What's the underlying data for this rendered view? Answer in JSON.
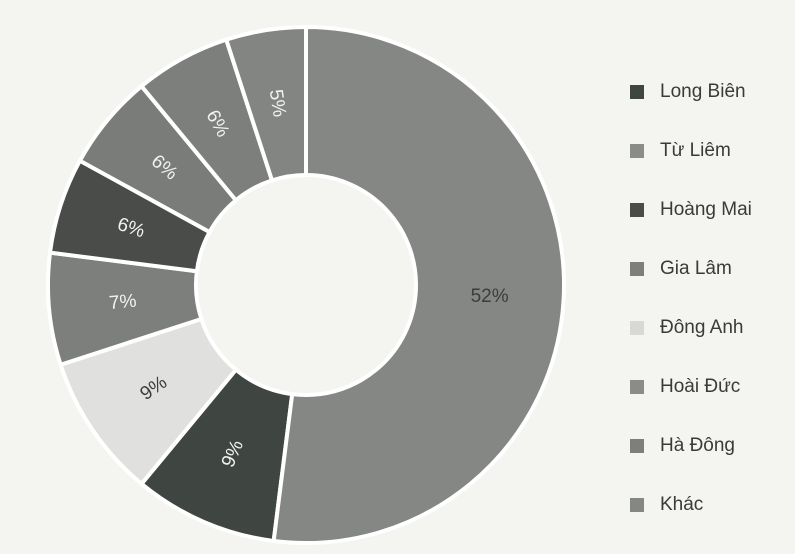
{
  "chart_data": {
    "type": "pie",
    "donut": true,
    "categories": [
      "Long Biên",
      "Từ Liêm",
      "Hoàng Mai",
      "Gia Lâm",
      "Đông Anh",
      "Hoài Đức",
      "Hà Đông",
      "Khác"
    ],
    "values": [
      9,
      9,
      7,
      6,
      6,
      6,
      5,
      52
    ],
    "value_labels": [
      "9%",
      "9%",
      "7%",
      "6%",
      "6%",
      "6%",
      "5%",
      "52%"
    ],
    "colors": [
      "#3f4541",
      "#e0e0de",
      "#7d7f7d",
      "#4a4c4a",
      "#7a7c7a",
      "#7d7f7d",
      "#838583",
      "#858785"
    ],
    "legend_labels": [
      "Long Biên",
      "Từ Liêm",
      "Hoàng Mai",
      "Gia Lâm",
      "Đông Anh",
      "Hoài Đức",
      "Hà Đông",
      "Khác"
    ],
    "legend_colors": [
      "#3f4541",
      "#8a8c8a",
      "#4a4c4a",
      "#7d7f7d",
      "#d8d8d6",
      "#8a8c8a",
      "#7d7f7d",
      "#858785"
    ],
    "legend_position": "right"
  }
}
